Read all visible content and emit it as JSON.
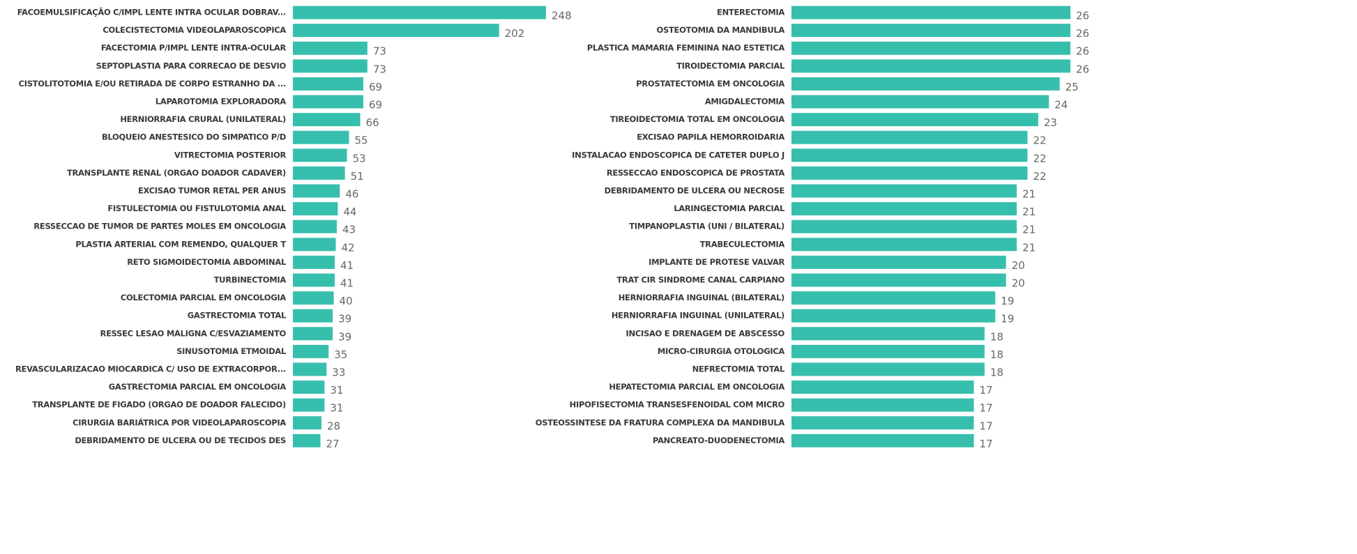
{
  "chart_data": [
    {
      "type": "bar",
      "orientation": "horizontal",
      "color": "#37bfad",
      "categories": [
        "FACOEMULSIFICAÇÃO C/IMPL LENTE INTRA OCULAR DOBRAV...",
        "COLECISTECTOMIA VIDEOLAPAROSCOPICA",
        "FACECTOMIA P/IMPL LENTE INTRA-OCULAR",
        "SEPTOPLASTIA PARA CORRECAO DE DESVIO",
        "CISTOLITOTOMIA E/OU RETIRADA DE CORPO ESTRANHO DA ...",
        "LAPAROTOMIA EXPLORADORA",
        "HERNIORRAFIA CRURAL (UNILATERAL)",
        "BLOQUEIO ANESTESICO DO SIMPATICO P/D",
        "VITRECTOMIA POSTERIOR",
        "TRANSPLANTE RENAL (ORGAO DOADOR CADAVER)",
        "EXCISAO TUMOR RETAL PER ANUS",
        "FISTULECTOMIA OU FISTULOTOMIA ANAL",
        "RESSECCAO DE TUMOR DE PARTES MOLES EM ONCOLOGIA",
        "PLASTIA ARTERIAL COM REMENDO, QUALQUER T",
        "RETO SIGMOIDECTOMIA ABDOMINAL",
        "TURBINECTOMIA",
        "COLECTOMIA PARCIAL EM ONCOLOGIA",
        "GASTRECTOMIA TOTAL",
        "RESSEC LESAO MALIGNA C/ESVAZIAMENTO",
        "SINUSOTOMIA ETMOIDAL",
        "REVASCULARIZACAO MIOCARDICA C/ USO DE EXTRACORPOR...",
        "GASTRECTOMIA PARCIAL EM ONCOLOGIA",
        "TRANSPLANTE DE FIGADO (ORGAO DE DOADOR FALECIDO)",
        "CIRURGIA BARIÁTRICA POR VIDEOLAPAROSCOPIA",
        "DEBRIDAMENTO DE ULCERA OU DE TECIDOS DES"
      ],
      "values": [
        248,
        202,
        73,
        73,
        69,
        69,
        66,
        55,
        53,
        51,
        46,
        44,
        43,
        42,
        41,
        41,
        40,
        39,
        39,
        35,
        33,
        31,
        31,
        28,
        27
      ]
    },
    {
      "type": "bar",
      "orientation": "horizontal",
      "color": "#37bfad",
      "categories": [
        "ENTERECTOMIA",
        "OSTEOTOMIA DA MANDIBULA",
        "PLASTICA MAMARIA FEMININA NAO ESTETICA",
        "TIROIDECTOMIA PARCIAL",
        "PROSTATECTOMIA EM ONCOLOGIA",
        "AMIGDALECTOMIA",
        "TIREOIDECTOMIA TOTAL EM ONCOLOGIA",
        "EXCISAO PAPILA HEMORROIDARIA",
        "INSTALACAO ENDOSCOPICA DE CATETER DUPLO J",
        "RESSECCAO  ENDOSCOPICA  DE  PROSTATA",
        "DEBRIDAMENTO DE ULCERA OU NECROSE",
        "LARINGECTOMIA PARCIAL",
        "TIMPANOPLASTIA (UNI / BILATERAL)",
        "TRABECULECTOMIA",
        "IMPLANTE DE PROTESE VALVAR",
        "TRAT CIR SINDROME CANAL CARPIANO",
        "HERNIORRAFIA INGUINAL (BILATERAL)",
        "HERNIORRAFIA INGUINAL (UNILATERAL)",
        "INCISAO E DRENAGEM DE ABSCESSO",
        "MICRO-CIRURGIA OTOLOGICA",
        "NEFRECTOMIA TOTAL",
        "HEPATECTOMIA PARCIAL EM ONCOLOGIA",
        "HIPOFISECTOMIA TRANSESFENOIDAL COM MICRO",
        "OSTEOSSINTESE DA FRATURA COMPLEXA DA MANDIBULA",
        "PANCREATO-DUODENECTOMIA"
      ],
      "values": [
        26,
        26,
        26,
        26,
        25,
        24,
        23,
        22,
        22,
        22,
        21,
        21,
        21,
        21,
        20,
        20,
        19,
        19,
        18,
        18,
        18,
        17,
        17,
        17,
        17
      ]
    }
  ]
}
